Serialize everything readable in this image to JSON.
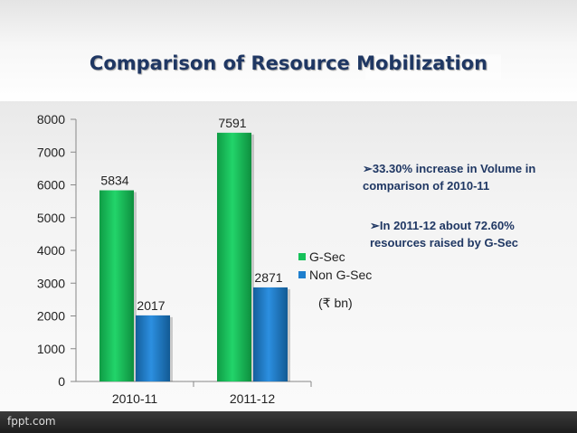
{
  "slide": {
    "title": "Comparison of Resource Mobilization",
    "bullets": [
      {
        "marker": "➢",
        "text": "33.30% increase in Volume in comparison of 2010-11"
      },
      {
        "marker": "➢",
        "text": "In 2011-12 about 72.60% resources raised by G-Sec"
      }
    ],
    "unit": "(₹ bn)"
  },
  "footer": {
    "brand": "fppt.com"
  },
  "colors": {
    "gsec": "#16c15a",
    "nongsec": "#1e7fce",
    "title": "#1f3763"
  },
  "chart_data": {
    "type": "bar",
    "categories": [
      "2010-11",
      "2011-12"
    ],
    "series": [
      {
        "name": "G-Sec",
        "values": [
          5834,
          7591
        ]
      },
      {
        "name": "Non G-Sec",
        "values": [
          2017,
          2871
        ]
      }
    ],
    "data_labels": [
      [
        "5834",
        "7591"
      ],
      [
        "2017",
        "2871"
      ]
    ],
    "yticks": [
      "0",
      "1000",
      "2000",
      "3000",
      "4000",
      "5000",
      "6000",
      "7000",
      "8000"
    ],
    "ylim": [
      0,
      8000
    ],
    "legend_position": "right",
    "grid": false
  }
}
